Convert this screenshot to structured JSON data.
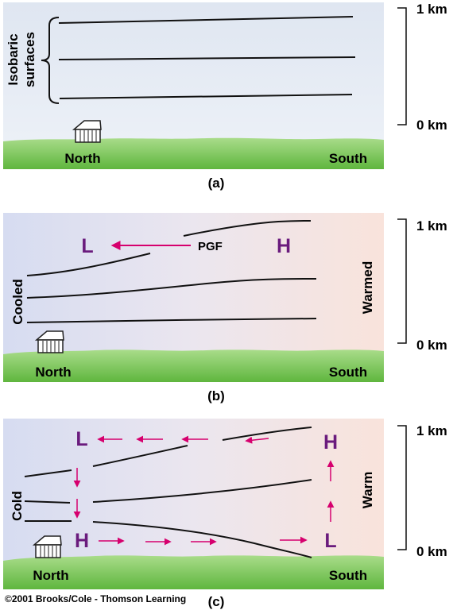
{
  "panel_a": {
    "caption": "(a)",
    "isobaric_label_line1": "Isobaric",
    "isobaric_label_line2": "surfaces",
    "scale_top": "1 km",
    "scale_bottom": "0 km",
    "north": "North",
    "south": "South"
  },
  "panel_b": {
    "caption": "(b)",
    "low": "L",
    "high": "H",
    "pgf": "PGF",
    "cooled": "Cooled",
    "warmed": "Warmed",
    "scale_top": "1 km",
    "scale_bottom": "0 km",
    "north": "North",
    "south": "South"
  },
  "panel_c": {
    "caption": "(c)",
    "low_top": "L",
    "high_top": "H",
    "high_bottom": "H",
    "low_bottom": "L",
    "cold": "Cold",
    "warm": "Warm",
    "scale_top": "1 km",
    "scale_bottom": "0 km",
    "north": "North",
    "south": "South"
  },
  "copyright": "©2001 Brooks/Cole - Thomson Learning",
  "colors": {
    "ground": "#66bb44",
    "ground_top": "#a6dc86",
    "arrow": "#d6006e",
    "pressure_letter": "#6a1b7d",
    "cool_tint": "#d8dcf0",
    "warm_tint": "#f8e2da",
    "sky_a": "#e4e9f3"
  }
}
